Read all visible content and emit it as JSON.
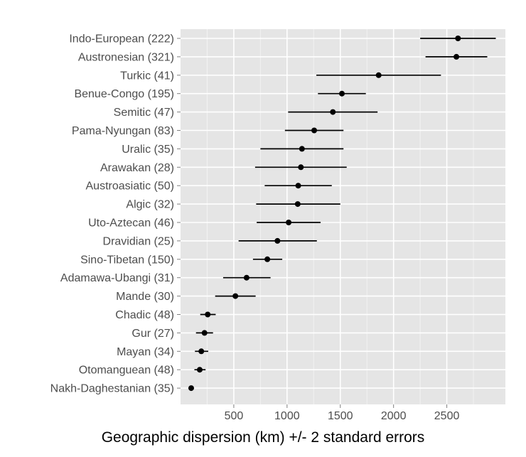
{
  "chart_data": {
    "type": "scatter",
    "subtype": "point-range",
    "title": "",
    "xlabel": "Geographic dispersion (km) +/- 2 standard errors",
    "ylabel": "",
    "xlim": [
      0,
      3050
    ],
    "xticks": [
      500,
      1000,
      1500,
      2000,
      2500
    ],
    "grid": true,
    "legend": "none",
    "colors": {
      "panel": "#e5e5e5",
      "grid_major": "#ffffff",
      "grid_minor": "#f2f2f2",
      "mark": "#000000"
    },
    "categories": [
      "Indo-European (222)",
      "Austronesian (321)",
      "Turkic (41)",
      "Benue-Congo (195)",
      "Semitic (47)",
      "Pama-Nyungan (83)",
      "Uralic (35)",
      "Arawakan (28)",
      "Austroasiatic (50)",
      "Algic (32)",
      "Uto-Aztecan (46)",
      "Dravidian (25)",
      "Sino-Tibetan (150)",
      "Adamawa-Ubangi (31)",
      "Mande (30)",
      "Chadic (48)",
      "Gur (27)",
      "Mayan (34)",
      "Otomanguean (48)",
      "Nakh-Daghestanian (35)"
    ],
    "points": [
      {
        "x": 2605,
        "low": 2250,
        "high": 2960
      },
      {
        "x": 2590,
        "low": 2300,
        "high": 2880
      },
      {
        "x": 1860,
        "low": 1275,
        "high": 2445
      },
      {
        "x": 1515,
        "low": 1290,
        "high": 1740
      },
      {
        "x": 1430,
        "low": 1010,
        "high": 1850
      },
      {
        "x": 1255,
        "low": 980,
        "high": 1530
      },
      {
        "x": 1140,
        "low": 750,
        "high": 1530
      },
      {
        "x": 1130,
        "low": 700,
        "high": 1560
      },
      {
        "x": 1105,
        "low": 790,
        "high": 1420
      },
      {
        "x": 1100,
        "low": 710,
        "high": 1500
      },
      {
        "x": 1015,
        "low": 715,
        "high": 1315
      },
      {
        "x": 910,
        "low": 545,
        "high": 1280
      },
      {
        "x": 815,
        "low": 680,
        "high": 955
      },
      {
        "x": 620,
        "low": 400,
        "high": 845
      },
      {
        "x": 515,
        "low": 325,
        "high": 705
      },
      {
        "x": 255,
        "low": 185,
        "high": 330
      },
      {
        "x": 225,
        "low": 145,
        "high": 305
      },
      {
        "x": 195,
        "low": 135,
        "high": 260
      },
      {
        "x": 180,
        "low": 130,
        "high": 235
      },
      {
        "x": 100,
        "low": 85,
        "high": 120
      }
    ]
  }
}
